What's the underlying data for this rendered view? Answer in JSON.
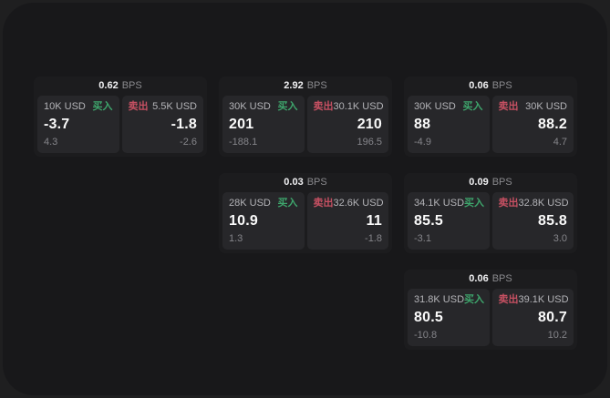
{
  "labels": {
    "bps_unit": "BPS",
    "buy": "买入",
    "sell": "卖出"
  },
  "colors": {
    "buy_accent": "#3ea56c",
    "sell_accent": "#c65062",
    "panel_bg": "#18181a",
    "card_bg": "#1c1c1e",
    "cell_bg": "#27272a"
  },
  "cards": [
    {
      "bps": "0.62",
      "buy": {
        "amount": "10K USD",
        "price": "-3.7",
        "delta": "4.3"
      },
      "sell": {
        "amount": "5.5K USD",
        "price": "-1.8",
        "delta": "-2.6"
      }
    },
    {
      "bps": "2.92",
      "buy": {
        "amount": "30K USD",
        "price": "201",
        "delta": "-188.1"
      },
      "sell": {
        "amount": "30.1K USD",
        "price": "210",
        "delta": "196.5"
      }
    },
    {
      "bps": "0.06",
      "buy": {
        "amount": "30K USD",
        "price": "88",
        "delta": "-4.9"
      },
      "sell": {
        "amount": "30K USD",
        "price": "88.2",
        "delta": "4.7"
      }
    },
    {
      "bps": "0.03",
      "buy": {
        "amount": "28K USD",
        "price": "10.9",
        "delta": "1.3"
      },
      "sell": {
        "amount": "32.6K USD",
        "price": "11",
        "delta": "-1.8"
      }
    },
    {
      "bps": "0.09",
      "buy": {
        "amount": "34.1K USD",
        "price": "85.5",
        "delta": "-3.1"
      },
      "sell": {
        "amount": "32.8K USD",
        "price": "85.8",
        "delta": "3.0"
      }
    },
    {
      "bps": "0.06",
      "buy": {
        "amount": "31.8K USD",
        "price": "80.5",
        "delta": "-10.8"
      },
      "sell": {
        "amount": "39.1K USD",
        "price": "80.7",
        "delta": "10.2"
      }
    }
  ]
}
